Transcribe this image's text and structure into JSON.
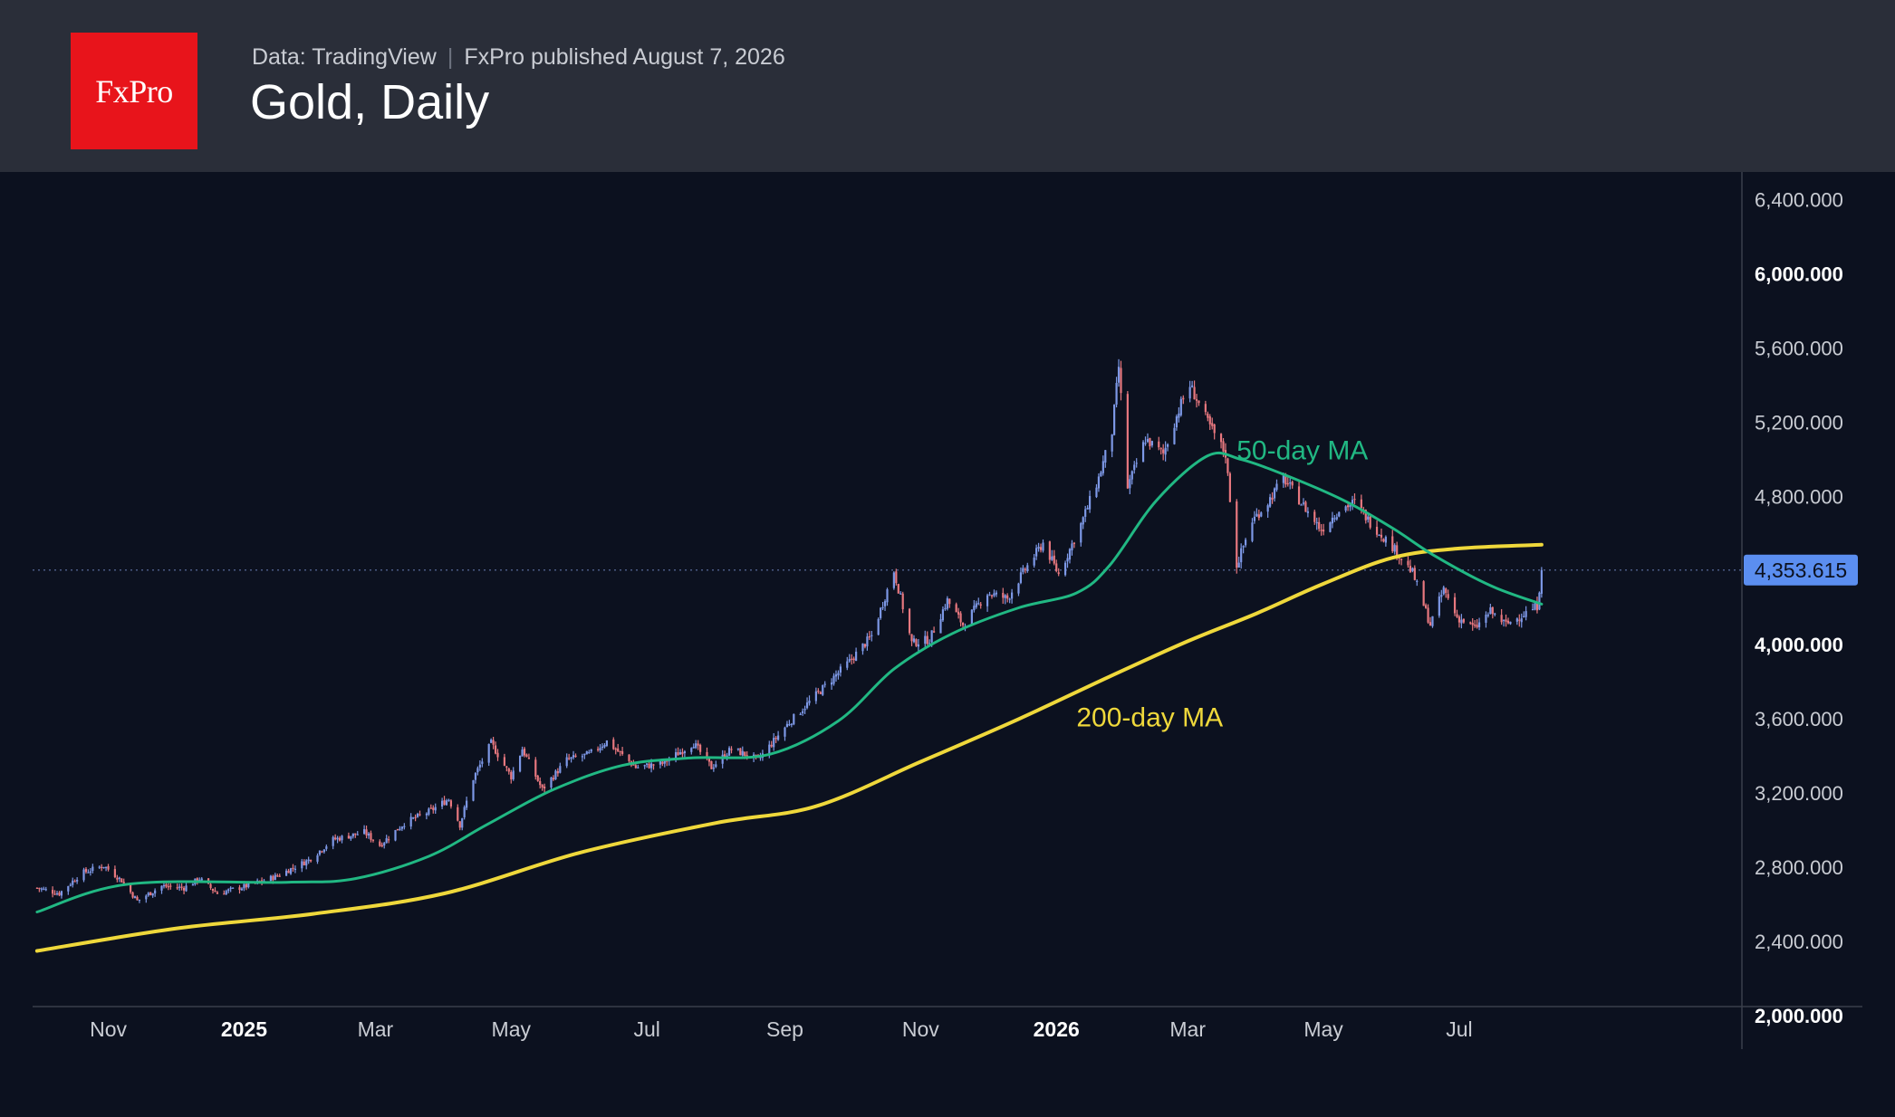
{
  "header": {
    "logo_text": "FxPro",
    "source": "Data: TradingView",
    "published": "FxPro published August 7, 2026",
    "title": "Gold, Daily"
  },
  "colors": {
    "background": "#0c111f",
    "header_bg": "#2a2e39",
    "logo_bg": "#e8141b",
    "candle_up": "#7d98e6",
    "candle_down": "#e8787f",
    "ma50": "#21b883",
    "ma200": "#efd83b",
    "price_tag": "#5b8ef0"
  },
  "chart_data": {
    "type": "candlestick",
    "title": "Gold, Daily",
    "ylim": [
      2000,
      6500
    ],
    "y_ticks": [
      {
        "value": 2000,
        "label": "2,000.000",
        "bold": true
      },
      {
        "value": 2400,
        "label": "2,400.000",
        "bold": false
      },
      {
        "value": 2800,
        "label": "2,800.000",
        "bold": false
      },
      {
        "value": 3200,
        "label": "3,200.000",
        "bold": false
      },
      {
        "value": 3600,
        "label": "3,600.000",
        "bold": false
      },
      {
        "value": 4000,
        "label": "4,000.000",
        "bold": true
      },
      {
        "value": 4800,
        "label": "4,800.000",
        "bold": false
      },
      {
        "value": 5200,
        "label": "5,200.000",
        "bold": false
      },
      {
        "value": 5600,
        "label": "5,600.000",
        "bold": false
      },
      {
        "value": 6000,
        "label": "6,000.000",
        "bold": true
      },
      {
        "value": 6400,
        "label": "6,400.000",
        "bold": false
      }
    ],
    "x_ticks": [
      {
        "date": "2024-11-01",
        "label": "Nov",
        "bold": false
      },
      {
        "date": "2025-01-01",
        "label": "2025",
        "bold": true
      },
      {
        "date": "2025-03-01",
        "label": "Mar",
        "bold": false
      },
      {
        "date": "2025-05-01",
        "label": "May",
        "bold": false
      },
      {
        "date": "2025-07-01",
        "label": "Jul",
        "bold": false
      },
      {
        "date": "2025-09-01",
        "label": "Sep",
        "bold": false
      },
      {
        "date": "2025-11-01",
        "label": "Nov",
        "bold": false
      },
      {
        "date": "2026-01-01",
        "label": "2026",
        "bold": true
      },
      {
        "date": "2026-03-01",
        "label": "Mar",
        "bold": false
      },
      {
        "date": "2026-05-01",
        "label": "May",
        "bold": false
      },
      {
        "date": "2026-07-01",
        "label": "Jul",
        "bold": false
      }
    ],
    "x_range": [
      "2024-09-28",
      "2026-11-05"
    ],
    "last_price": 4353.615,
    "last_price_label": "4,353.615",
    "close_series": [
      [
        "2024-09-30",
        2640
      ],
      [
        "2024-10-10",
        2610
      ],
      [
        "2024-10-20",
        2720
      ],
      [
        "2024-10-30",
        2760
      ],
      [
        "2024-11-07",
        2680
      ],
      [
        "2024-11-14",
        2570
      ],
      [
        "2024-11-25",
        2650
      ],
      [
        "2024-12-05",
        2640
      ],
      [
        "2024-12-12",
        2690
      ],
      [
        "2024-12-20",
        2610
      ],
      [
        "2025-01-02",
        2650
      ],
      [
        "2025-01-15",
        2700
      ],
      [
        "2025-01-30",
        2790
      ],
      [
        "2025-02-10",
        2900
      ],
      [
        "2025-02-24",
        2940
      ],
      [
        "2025-03-03",
        2870
      ],
      [
        "2025-03-14",
        2990
      ],
      [
        "2025-03-25",
        3050
      ],
      [
        "2025-04-03",
        3120
      ],
      [
        "2025-04-08",
        2980
      ],
      [
        "2025-04-14",
        3230
      ],
      [
        "2025-04-22",
        3420
      ],
      [
        "2025-05-01",
        3240
      ],
      [
        "2025-05-06",
        3390
      ],
      [
        "2025-05-15",
        3170
      ],
      [
        "2025-05-26",
        3330
      ],
      [
        "2025-06-05",
        3360
      ],
      [
        "2025-06-13",
        3430
      ],
      [
        "2025-06-26",
        3290
      ],
      [
        "2025-07-08",
        3310
      ],
      [
        "2025-07-22",
        3420
      ],
      [
        "2025-07-30",
        3290
      ],
      [
        "2025-08-08",
        3390
      ],
      [
        "2025-08-20",
        3330
      ],
      [
        "2025-09-02",
        3520
      ],
      [
        "2025-09-15",
        3680
      ],
      [
        "2025-09-30",
        3860
      ],
      [
        "2025-10-10",
        4000
      ],
      [
        "2025-10-20",
        4350
      ],
      [
        "2025-10-28",
        3960
      ],
      [
        "2025-11-05",
        3980
      ],
      [
        "2025-11-13",
        4190
      ],
      [
        "2025-11-20",
        4060
      ],
      [
        "2025-12-01",
        4230
      ],
      [
        "2025-12-10",
        4200
      ],
      [
        "2025-12-17",
        4340
      ],
      [
        "2025-12-26",
        4500
      ],
      [
        "2026-01-02",
        4330
      ],
      [
        "2026-01-12",
        4600
      ],
      [
        "2026-01-20",
        4850
      ],
      [
        "2026-01-26",
        5100
      ],
      [
        "2026-01-29",
        5450
      ],
      [
        "2026-02-02",
        4800
      ],
      [
        "2026-02-10",
        5060
      ],
      [
        "2026-02-18",
        4980
      ],
      [
        "2026-02-26",
        5250
      ],
      [
        "2026-03-02",
        5350
      ],
      [
        "2026-03-10",
        5150
      ],
      [
        "2026-03-18",
        4980
      ],
      [
        "2026-03-23",
        4380
      ],
      [
        "2026-03-30",
        4620
      ],
      [
        "2026-04-06",
        4720
      ],
      [
        "2026-04-13",
        4850
      ],
      [
        "2026-04-22",
        4700
      ],
      [
        "2026-04-30",
        4570
      ],
      [
        "2026-05-08",
        4680
      ],
      [
        "2026-05-15",
        4720
      ],
      [
        "2026-05-22",
        4610
      ],
      [
        "2026-06-01",
        4480
      ],
      [
        "2026-06-10",
        4340
      ],
      [
        "2026-06-18",
        4060
      ],
      [
        "2026-06-24",
        4250
      ],
      [
        "2026-06-30",
        4100
      ],
      [
        "2026-07-08",
        4040
      ],
      [
        "2026-07-15",
        4130
      ],
      [
        "2026-07-22",
        4060
      ],
      [
        "2026-07-29",
        4110
      ],
      [
        "2026-08-05",
        4160
      ],
      [
        "2026-08-07",
        4353.615
      ]
    ],
    "series": [
      {
        "name": "50-day MA",
        "color": "#21b883",
        "points": [
          [
            "2024-09-30",
            2510
          ],
          [
            "2024-11-10",
            2660
          ],
          [
            "2025-01-20",
            2670
          ],
          [
            "2025-02-20",
            2690
          ],
          [
            "2025-03-25",
            2810
          ],
          [
            "2025-04-20",
            2980
          ],
          [
            "2025-05-20",
            3170
          ],
          [
            "2025-06-20",
            3300
          ],
          [
            "2025-07-20",
            3340
          ],
          [
            "2025-08-25",
            3360
          ],
          [
            "2025-09-25",
            3540
          ],
          [
            "2025-10-20",
            3820
          ],
          [
            "2025-11-15",
            4010
          ],
          [
            "2025-12-15",
            4150
          ],
          [
            "2026-01-10",
            4230
          ],
          [
            "2026-01-25",
            4380
          ],
          [
            "2026-02-15",
            4730
          ],
          [
            "2026-03-10",
            4970
          ],
          [
            "2026-03-25",
            4950
          ],
          [
            "2026-04-15",
            4860
          ],
          [
            "2026-05-10",
            4730
          ],
          [
            "2026-06-01",
            4580
          ],
          [
            "2026-06-20",
            4430
          ],
          [
            "2026-07-15",
            4270
          ],
          [
            "2026-08-07",
            4170
          ]
        ]
      },
      {
        "name": "200-day MA",
        "color": "#efd83b",
        "points": [
          [
            "2024-09-30",
            2300
          ],
          [
            "2024-12-01",
            2420
          ],
          [
            "2025-02-01",
            2500
          ],
          [
            "2025-04-01",
            2610
          ],
          [
            "2025-06-01",
            2830
          ],
          [
            "2025-08-01",
            2990
          ],
          [
            "2025-09-15",
            3080
          ],
          [
            "2025-11-01",
            3320
          ],
          [
            "2025-12-15",
            3550
          ],
          [
            "2026-01-25",
            3780
          ],
          [
            "2026-03-01",
            3970
          ],
          [
            "2026-04-01",
            4120
          ],
          [
            "2026-05-01",
            4280
          ],
          [
            "2026-06-01",
            4420
          ],
          [
            "2026-07-01",
            4470
          ],
          [
            "2026-08-07",
            4490
          ]
        ]
      }
    ],
    "annotations": [
      {
        "text": "50-day MA",
        "color": "#21b883",
        "anchor_date": "2026-03-23",
        "anchor_value": 5000
      },
      {
        "text": "200-day MA",
        "color": "#efd83b",
        "anchor_date": "2026-01-10",
        "anchor_value": 3560
      }
    ]
  }
}
